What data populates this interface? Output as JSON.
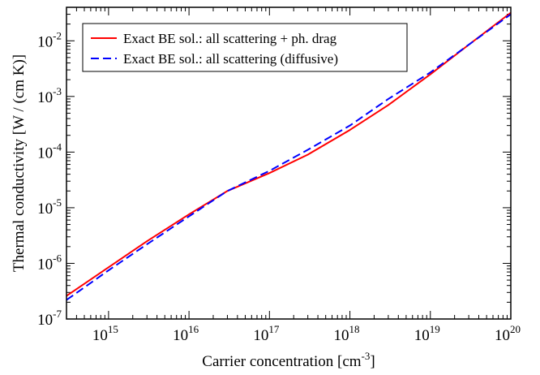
{
  "chart_data": {
    "type": "line",
    "title": "",
    "xlabel": "Carrier concentration [cm",
    "xlabel_exp": "-3",
    "xlabel_suffix": "]",
    "ylabel": "Thermal conductivity [W / (cm K)]",
    "xscale": "log",
    "yscale": "log",
    "xlim": [
      300000000000000.0,
      1e+20
    ],
    "ylim": [
      1e-07,
      0.04
    ],
    "grid": false,
    "legend_position": "top-left",
    "x_ticks": [
      {
        "value": 1000000000000000.0,
        "base": "10",
        "exp": "15"
      },
      {
        "value": 1e+16,
        "base": "10",
        "exp": "16"
      },
      {
        "value": 1e+17,
        "base": "10",
        "exp": "17"
      },
      {
        "value": 1e+18,
        "base": "10",
        "exp": "18"
      },
      {
        "value": 1e+19,
        "base": "10",
        "exp": "19"
      },
      {
        "value": 1e+20,
        "base": "10",
        "exp": "20"
      }
    ],
    "y_ticks": [
      {
        "value": 1e-07,
        "base": "10",
        "exp": "-7"
      },
      {
        "value": 1e-06,
        "base": "10",
        "exp": "-6"
      },
      {
        "value": 1e-05,
        "base": "10",
        "exp": "-5"
      },
      {
        "value": 0.0001,
        "base": "10",
        "exp": "-4"
      },
      {
        "value": 0.001,
        "base": "10",
        "exp": "-3"
      },
      {
        "value": 0.01,
        "base": "10",
        "exp": "-2"
      }
    ],
    "series": [
      {
        "name": "Exact BE sol.: all scattering + ph. drag",
        "color": "#ff0000",
        "dash": "solid",
        "x": [
          300000000000000.0,
          1000000000000000.0,
          3000000000000000.0,
          1e+16,
          3e+16,
          1e+17,
          3e+17,
          1e+18,
          3e+18,
          1e+19,
          3e+19,
          1e+20
        ],
        "y": [
          2.6e-07,
          8.5e-07,
          2.5e-06,
          7.6e-06,
          2e-05,
          4.2e-05,
          9e-05,
          0.00025,
          0.0007,
          0.0025,
          0.0085,
          0.032
        ]
      },
      {
        "name": "Exact BE sol.: all scattering (diffusive)",
        "color": "#0000ff",
        "dash": "dashed",
        "x": [
          300000000000000.0,
          1000000000000000.0,
          3000000000000000.0,
          1e+16,
          3e+16,
          1e+17,
          3e+17,
          1e+18,
          3e+18,
          1e+19,
          3e+19,
          1e+20
        ],
        "y": [
          2.2e-07,
          7.5e-07,
          2.2e-06,
          7e-06,
          2e-05,
          4.6e-05,
          0.00011,
          0.0003,
          0.0009,
          0.0027,
          0.0085,
          0.03
        ]
      }
    ]
  }
}
